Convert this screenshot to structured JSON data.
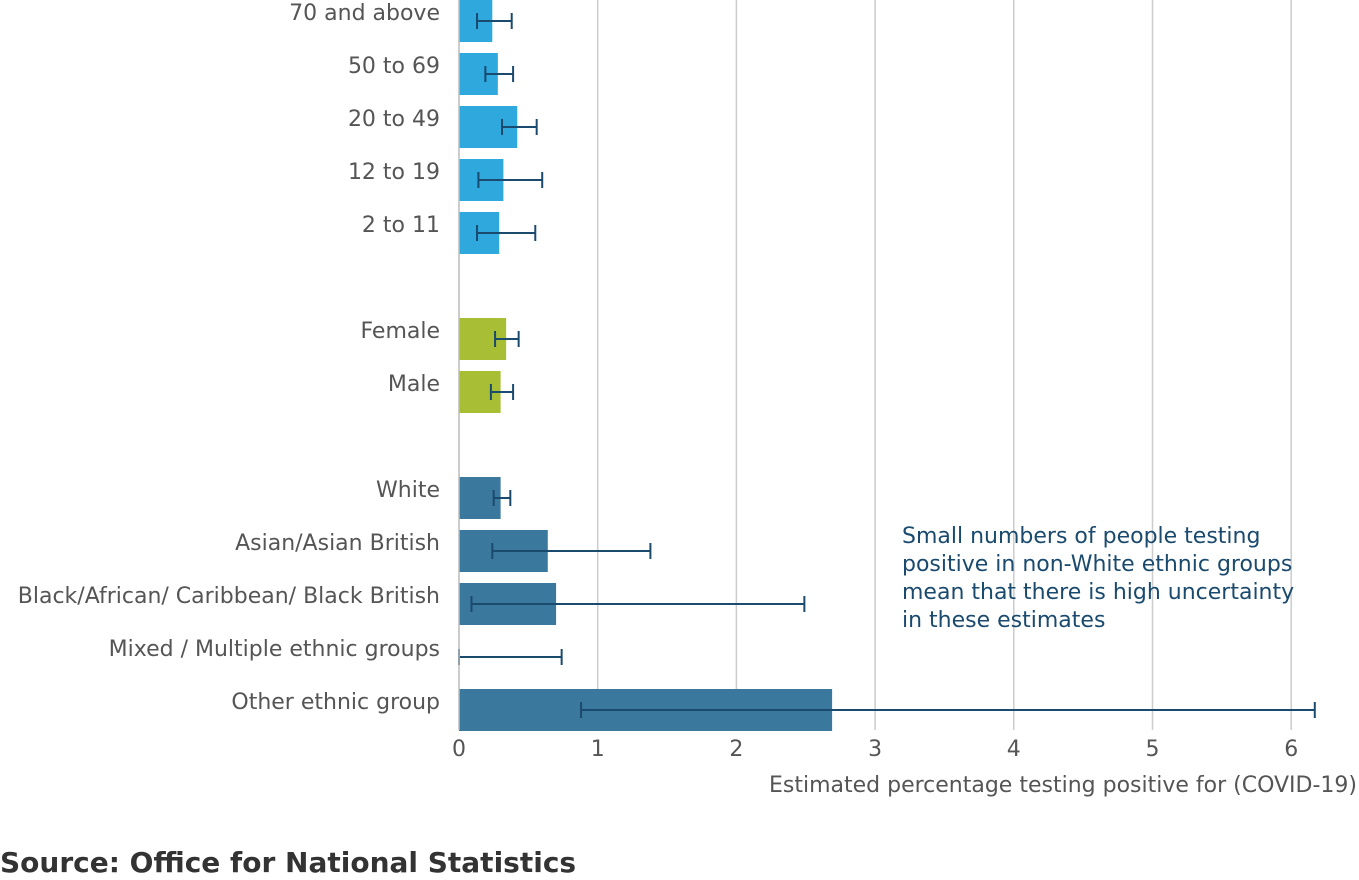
{
  "chart_data": {
    "type": "bar",
    "orientation": "horizontal",
    "xlabel": "Estimated percentage testing positive for (COVID-19)",
    "xlim": [
      0,
      6.4
    ],
    "xticks": [
      0,
      1,
      2,
      3,
      4,
      5,
      6
    ],
    "grid": "vertical",
    "groups": [
      {
        "color": "#2fa8dd",
        "items": [
          {
            "label": "70 and above",
            "value": 0.24,
            "lower": 0.13,
            "upper": 0.38
          },
          {
            "label": "50 to 69",
            "value": 0.28,
            "lower": 0.19,
            "upper": 0.39
          },
          {
            "label": "20 to 49",
            "value": 0.42,
            "lower": 0.31,
            "upper": 0.56
          },
          {
            "label": "12 to 19",
            "value": 0.32,
            "lower": 0.14,
            "upper": 0.6
          },
          {
            "label": "2 to 11",
            "value": 0.29,
            "lower": 0.13,
            "upper": 0.55
          }
        ]
      },
      {
        "color": "#a8be34",
        "items": [
          {
            "label": "Female",
            "value": 0.34,
            "lower": 0.26,
            "upper": 0.43
          },
          {
            "label": "Male",
            "value": 0.3,
            "lower": 0.23,
            "upper": 0.39
          }
        ]
      },
      {
        "color": "#3b789e",
        "items": [
          {
            "label": "White",
            "value": 0.3,
            "lower": 0.25,
            "upper": 0.37
          },
          {
            "label": "Asian/Asian British",
            "value": 0.64,
            "lower": 0.24,
            "upper": 1.38
          },
          {
            "label": "Black/African/ Caribbean/ Black British",
            "value": 0.7,
            "lower": 0.09,
            "upper": 2.49
          },
          {
            "label": "Mixed / Multiple ethnic groups",
            "value": 0.0,
            "lower": 0.0,
            "upper": 0.74
          },
          {
            "label": "Other ethnic group",
            "value": 2.69,
            "lower": 0.88,
            "upper": 6.17
          }
        ]
      }
    ],
    "annotation": [
      "Small numbers of people testing",
      "positive in non-White ethnic groups",
      "mean that there is high uncertainty",
      "in these estimates"
    ],
    "error_bar_color": "#1a4a6e"
  },
  "source": "Source: Office for National Statistics"
}
